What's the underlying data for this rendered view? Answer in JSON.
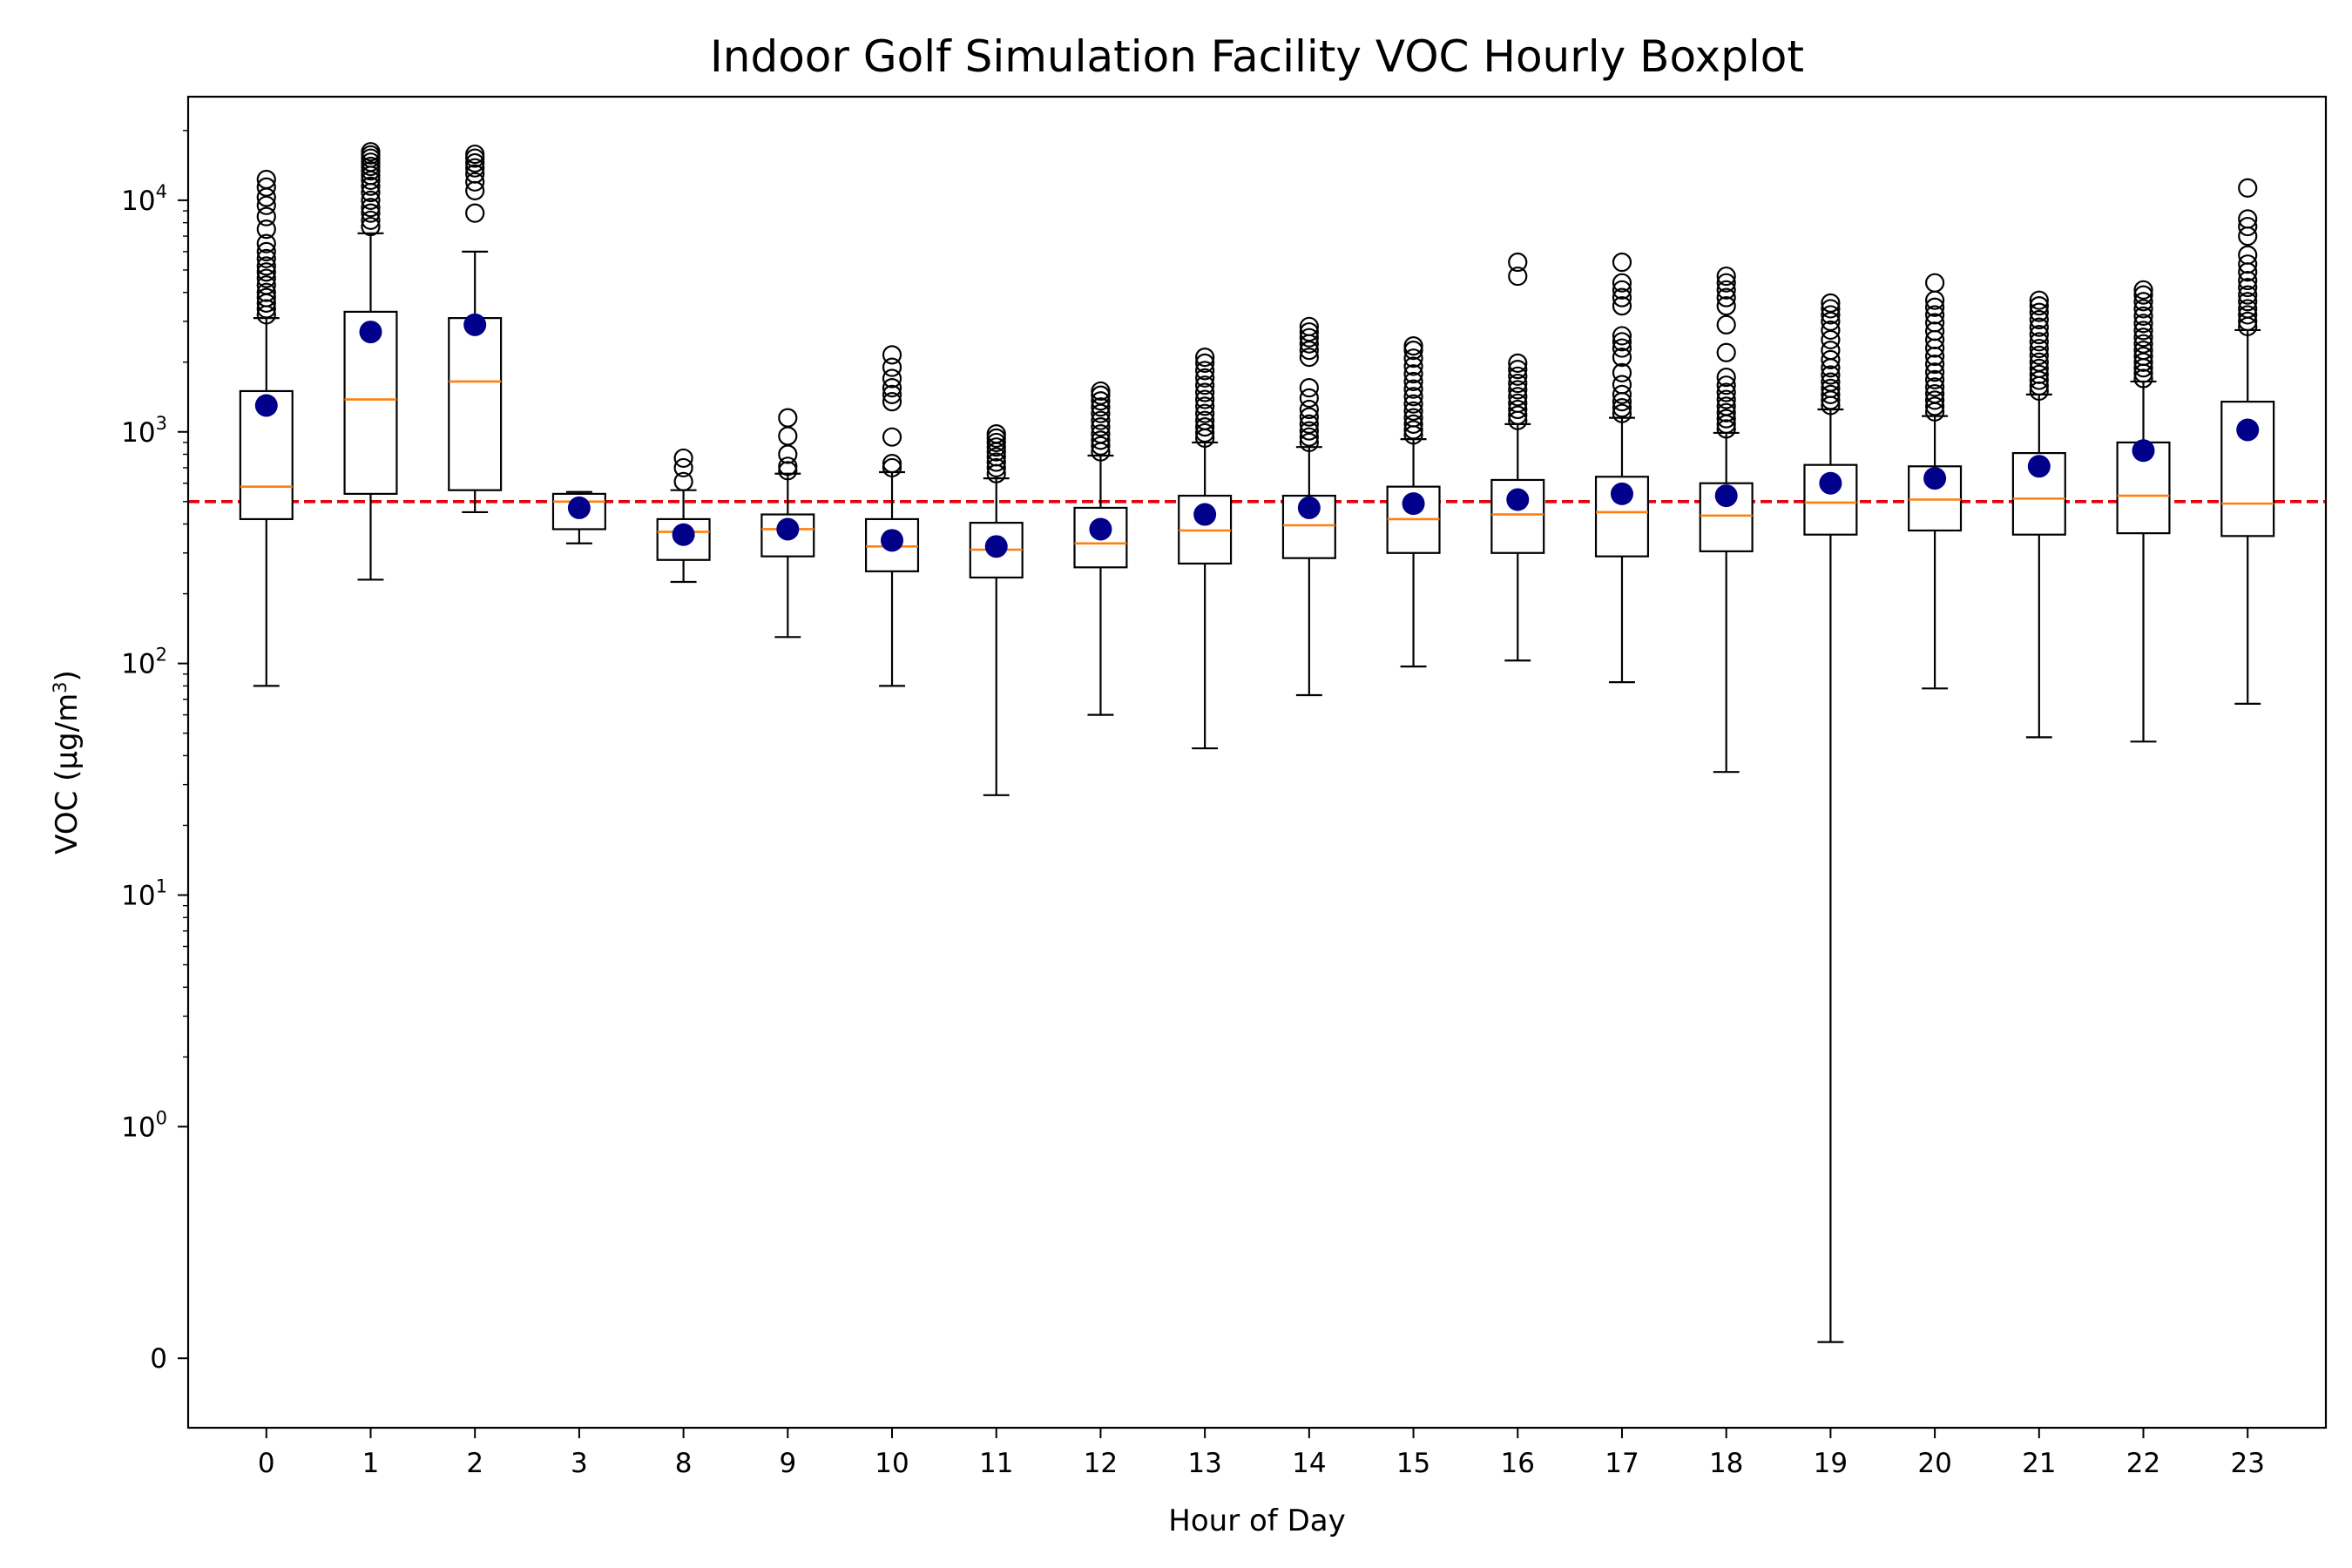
{
  "chart_data": {
    "type": "boxplot",
    "title": "Indoor Golf Simulation Facility VOC Hourly Boxplot",
    "xlabel": "Hour of Day",
    "ylabel": {
      "prefix": "VOC (μg/m",
      "sup": "3",
      "suffix": ")"
    },
    "yscale": "symlog",
    "ylim": [
      -0.3,
      28000
    ],
    "y_ticks": [
      {
        "value": 0,
        "base": "0",
        "exp": ""
      },
      {
        "value": 1,
        "base": "10",
        "exp": "0"
      },
      {
        "value": 10,
        "base": "10",
        "exp": "1"
      },
      {
        "value": 100,
        "base": "10",
        "exp": "2"
      },
      {
        "value": 1000,
        "base": "10",
        "exp": "3"
      },
      {
        "value": 10000,
        "base": "10",
        "exp": "4"
      }
    ],
    "reference_line": {
      "value": 500,
      "color": "#e8000b",
      "style": "dashed"
    },
    "colors": {
      "box": "#000000",
      "median": "#ff7f0e",
      "mean": "#00008b",
      "flier": "#000000"
    },
    "grid": false,
    "categories": [
      "0",
      "1",
      "2",
      "3",
      "8",
      "9",
      "10",
      "11",
      "12",
      "13",
      "14",
      "15",
      "16",
      "17",
      "18",
      "19",
      "20",
      "21",
      "22",
      "23"
    ],
    "boxes": [
      {
        "whislo": 80,
        "q1": 420,
        "med": 580,
        "q3": 1500,
        "whishi": 3100,
        "mean": 1300,
        "fliers": [
          3200,
          3400,
          3600,
          3800,
          4000,
          4300,
          4600,
          4900,
          5200,
          5600,
          6000,
          6500,
          7500,
          8500,
          9500,
          10300,
          11400,
          12300
        ]
      },
      {
        "whislo": 230,
        "q1": 540,
        "med": 1380,
        "q3": 3300,
        "whishi": 7200,
        "mean": 2700,
        "fliers": [
          7700,
          8200,
          8800,
          9300,
          10000,
          10800,
          11500,
          12200,
          12800,
          13400,
          14000,
          14600,
          15200,
          15700,
          16200
        ]
      },
      {
        "whislo": 450,
        "q1": 560,
        "med": 1650,
        "q3": 3100,
        "whishi": 6000,
        "mean": 2900,
        "fliers": [
          8800,
          11000,
          12000,
          13000,
          13800,
          14500,
          15200,
          15800
        ]
      },
      {
        "whislo": 330,
        "q1": 380,
        "med": 500,
        "q3": 540,
        "whishi": 550,
        "mean": 470,
        "fliers": []
      },
      {
        "whislo": 225,
        "q1": 280,
        "med": 370,
        "q3": 420,
        "whishi": 560,
        "mean": 360,
        "fliers": [
          610,
          700,
          770
        ]
      },
      {
        "whislo": 130,
        "q1": 290,
        "med": 380,
        "q3": 440,
        "whishi": 660,
        "mean": 380,
        "fliers": [
          680,
          710,
          800,
          960,
          1150
        ]
      },
      {
        "whislo": 80,
        "q1": 250,
        "med": 320,
        "q3": 420,
        "whishi": 670,
        "mean": 340,
        "fliers": [
          700,
          730,
          950,
          1350,
          1450,
          1550,
          1700,
          1900,
          2150
        ]
      },
      {
        "whislo": 27,
        "q1": 235,
        "med": 310,
        "q3": 405,
        "whishi": 630,
        "mean": 320,
        "fliers": [
          660,
          700,
          740,
          780,
          820,
          860,
          900,
          940,
          980
        ]
      },
      {
        "whislo": 60,
        "q1": 260,
        "med": 330,
        "q3": 470,
        "whishi": 790,
        "mean": 380,
        "fliers": [
          820,
          870,
          920,
          980,
          1050,
          1120,
          1200,
          1280,
          1360,
          1440,
          1500
        ]
      },
      {
        "whislo": 43,
        "q1": 270,
        "med": 375,
        "q3": 530,
        "whishi": 900,
        "mean": 440,
        "fliers": [
          940,
          990,
          1050,
          1120,
          1200,
          1290,
          1380,
          1480,
          1590,
          1710,
          1840,
          1980,
          2100
        ]
      },
      {
        "whislo": 73,
        "q1": 285,
        "med": 395,
        "q3": 530,
        "whishi": 860,
        "mean": 470,
        "fliers": [
          900,
          950,
          1010,
          1080,
          1160,
          1250,
          1400,
          1550,
          2100,
          2250,
          2400,
          2550,
          2700,
          2850
        ]
      },
      {
        "whislo": 97,
        "q1": 300,
        "med": 420,
        "q3": 580,
        "whishi": 930,
        "mean": 490,
        "fliers": [
          970,
          1020,
          1080,
          1150,
          1230,
          1320,
          1420,
          1530,
          1650,
          1780,
          1920,
          2080,
          2250,
          2350
        ]
      },
      {
        "whislo": 103,
        "q1": 300,
        "med": 440,
        "q3": 620,
        "whishi": 1080,
        "mean": 510,
        "fliers": [
          1120,
          1180,
          1250,
          1330,
          1420,
          1520,
          1620,
          1740,
          1860,
          1980,
          4700,
          5400
        ]
      },
      {
        "whislo": 83,
        "q1": 290,
        "med": 450,
        "q3": 640,
        "whishi": 1150,
        "mean": 540,
        "fliers": [
          1200,
          1270,
          1350,
          1450,
          1600,
          1800,
          2100,
          2300,
          2450,
          2600,
          3500,
          3800,
          4100,
          4400,
          5400
        ]
      },
      {
        "whislo": 34,
        "q1": 305,
        "med": 435,
        "q3": 600,
        "whishi": 990,
        "mean": 530,
        "fliers": [
          1030,
          1080,
          1140,
          1210,
          1290,
          1380,
          1480,
          1590,
          1720,
          2200,
          2900,
          3500,
          3800,
          4100,
          4400,
          4700
        ]
      },
      {
        "whislo": 0.07,
        "q1": 360,
        "med": 495,
        "q3": 720,
        "whishi": 1250,
        "mean": 600,
        "fliers": [
          1300,
          1370,
          1450,
          1540,
          1640,
          1760,
          1890,
          2050,
          2250,
          2500,
          2750,
          3000,
          3200,
          3400,
          3600
        ]
      },
      {
        "whislo": 78,
        "q1": 375,
        "med": 510,
        "q3": 710,
        "whishi": 1170,
        "mean": 630,
        "fliers": [
          1220,
          1290,
          1370,
          1460,
          1560,
          1680,
          1810,
          1960,
          2120,
          2300,
          2500,
          2720,
          2960,
          3200,
          3450,
          3700,
          4400
        ]
      },
      {
        "whislo": 48,
        "q1": 360,
        "med": 515,
        "q3": 810,
        "whishi": 1450,
        "mean": 710,
        "fliers": [
          1500,
          1580,
          1670,
          1770,
          1880,
          2000,
          2140,
          2290,
          2450,
          2630,
          2830,
          3050,
          3280,
          3500,
          3700
        ]
      },
      {
        "whislo": 46,
        "q1": 365,
        "med": 530,
        "q3": 900,
        "whishi": 1650,
        "mean": 830,
        "fliers": [
          1700,
          1790,
          1890,
          2000,
          2120,
          2250,
          2400,
          2560,
          2740,
          2940,
          3160,
          3400,
          3650,
          3900,
          4100
        ]
      },
      {
        "whislo": 67,
        "q1": 355,
        "med": 490,
        "q3": 1350,
        "whishi": 2750,
        "mean": 1020,
        "fliers": [
          2850,
          3000,
          3200,
          3400,
          3650,
          3900,
          4200,
          4500,
          4900,
          5300,
          5800,
          7000,
          7700,
          8300,
          11300
        ]
      }
    ]
  }
}
